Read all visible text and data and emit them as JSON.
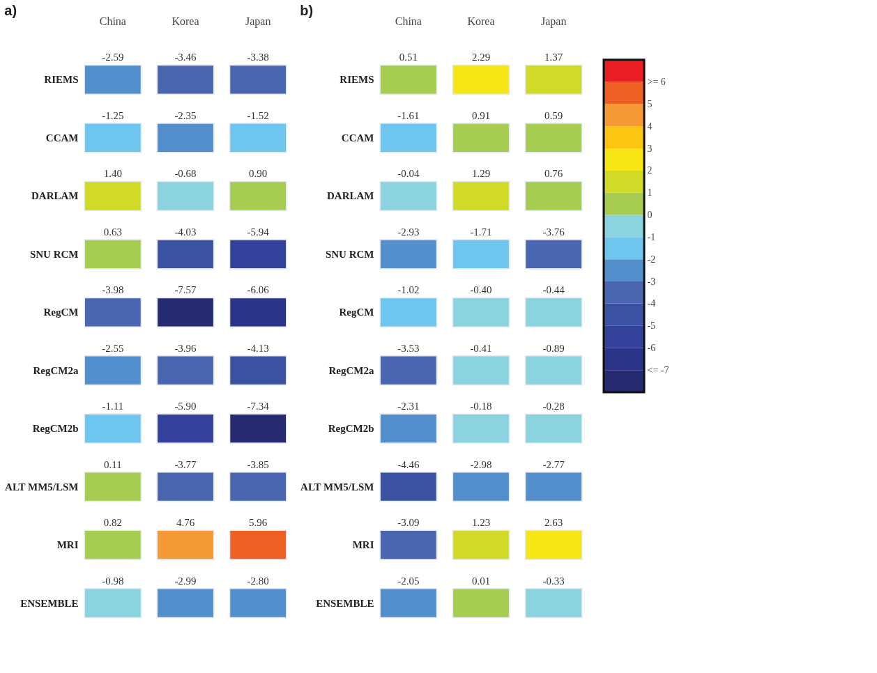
{
  "chart_data": [
    {
      "type": "heatmap",
      "title": "a)",
      "categories": [
        "China",
        "Korea",
        "Japan"
      ],
      "y_categories": [
        "RIEMS",
        "CCAM",
        "DARLAM",
        "SNU RCM",
        "RegCM",
        "RegCM2a",
        "RegCM2b",
        "ALT MM5/LSM",
        "MRI",
        "ENSEMBLE"
      ],
      "cells": [
        [
          -2.59,
          -3.46,
          -3.38
        ],
        [
          -1.25,
          -2.35,
          -1.52
        ],
        [
          1.4,
          -0.68,
          0.9
        ],
        [
          0.63,
          -4.03,
          -5.94
        ],
        [
          -3.98,
          -7.57,
          -6.06
        ],
        [
          -2.55,
          -3.96,
          -4.13
        ],
        [
          -1.11,
          -5.9,
          -7.34
        ],
        [
          0.11,
          -3.77,
          -3.85
        ],
        [
          0.82,
          4.76,
          5.96
        ],
        [
          -0.98,
          -2.99,
          -2.8
        ]
      ],
      "cell_labels": [
        [
          "-2.59",
          "-3.46",
          "-3.38"
        ],
        [
          "-1.25",
          "-2.35",
          "-1.52"
        ],
        [
          "1.40",
          "-0.68",
          "0.90"
        ],
        [
          "0.63",
          "-4.03",
          "-5.94"
        ],
        [
          "-3.98",
          "-7.57",
          "-6.06"
        ],
        [
          "-2.55",
          "-3.96",
          "-4.13"
        ],
        [
          "-1.11",
          "-5.90",
          "-7.34"
        ],
        [
          "0.11",
          "-3.77",
          "-3.85"
        ],
        [
          "0.82",
          "4.76",
          "5.96"
        ],
        [
          "-0.98",
          "-2.99",
          "-2.80"
        ]
      ]
    },
    {
      "type": "heatmap",
      "title": "b)",
      "categories": [
        "China",
        "Korea",
        "Japan"
      ],
      "y_categories": [
        "RIEMS",
        "CCAM",
        "DARLAM",
        "SNU RCM",
        "RegCM",
        "RegCM2a",
        "RegCM2b",
        "ALT MM5/LSM",
        "MRI",
        "ENSEMBLE"
      ],
      "cells": [
        [
          0.51,
          2.29,
          1.37
        ],
        [
          -1.61,
          0.91,
          0.59
        ],
        [
          -0.04,
          1.29,
          0.76
        ],
        [
          -2.93,
          -1.71,
          -3.76
        ],
        [
          -1.02,
          -0.4,
          -0.44
        ],
        [
          -3.53,
          -0.41,
          -0.89
        ],
        [
          -2.31,
          -0.18,
          -0.28
        ],
        [
          -4.46,
          -2.98,
          -2.77
        ],
        [
          -3.09,
          1.23,
          2.63
        ],
        [
          -2.05,
          0.01,
          -0.33
        ]
      ],
      "cell_labels": [
        [
          "0.51",
          "2.29",
          "1.37"
        ],
        [
          "-1.61",
          "0.91",
          "0.59"
        ],
        [
          "-0.04",
          "1.29",
          "0.76"
        ],
        [
          "-2.93",
          "-1.71",
          "-3.76"
        ],
        [
          "-1.02",
          "-0.40",
          "-0.44"
        ],
        [
          "-3.53",
          "-0.41",
          "-0.89"
        ],
        [
          "-2.31",
          "-0.18",
          "-0.28"
        ],
        [
          "-4.46",
          "-2.98",
          "-2.77"
        ],
        [
          "-3.09",
          "1.23",
          "2.63"
        ],
        [
          "-2.05",
          "0.01",
          "-0.33"
        ]
      ],
      "clim": [
        -8,
        7
      ],
      "cticks": [
        {
          "value": -7,
          "label": "<= -7"
        },
        -6,
        -5,
        -4,
        -3,
        -2,
        -1,
        0,
        1,
        2,
        3,
        4,
        5,
        {
          "value": 6,
          "label": ">= 6"
        }
      ],
      "colors": [
        "#262a70",
        "#2c3487",
        "#33419a",
        "#3b52a3",
        "#4a66b0",
        "#528fcc",
        "#6ec6ee",
        "#8cd3e0",
        "#a6cd52",
        "#cfdb27",
        "#f7e616",
        "#fcc512",
        "#f59a35",
        "#ef6024",
        "#ea1f25"
      ]
    }
  ]
}
